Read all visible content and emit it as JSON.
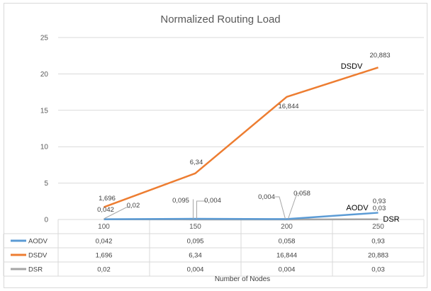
{
  "chart_data": {
    "type": "line",
    "title": "Normalized Routing Load",
    "xlabel": "Number of Nodes",
    "ylabel": "",
    "categories": [
      "100",
      "150",
      "200",
      "250"
    ],
    "ylim": [
      0,
      25
    ],
    "yticks": [
      "0",
      "5",
      "10",
      "15",
      "20",
      "25"
    ],
    "grid": true,
    "legend": "data-table-below",
    "series": [
      {
        "name": "AODV",
        "color": "#5b9bd5",
        "values": [
          0.042,
          0.095,
          0.058,
          0.93
        ],
        "labels": [
          "0,042",
          "0,095",
          "0,058",
          "0,93"
        ]
      },
      {
        "name": "DSDV",
        "color": "#ed7d31",
        "values": [
          1.696,
          6.34,
          16.844,
          20.883
        ],
        "labels": [
          "1,696",
          "6,34",
          "16,844",
          "20,883"
        ]
      },
      {
        "name": "DSR",
        "color": "#a5a5a5",
        "values": [
          0.02,
          0.004,
          0.004,
          0.03
        ],
        "labels": [
          "0,02",
          "0,004",
          "0,004",
          "0,03"
        ]
      }
    ],
    "point_labels": [
      "1,696",
      "0,042",
      "0,02",
      "0,095",
      "0,004",
      "6,34",
      "0,004",
      "0,058",
      "16,844",
      "20,883",
      "0,93",
      "0,03"
    ],
    "series_annotations": [
      "DSDV",
      "AODV",
      "DSR"
    ]
  }
}
